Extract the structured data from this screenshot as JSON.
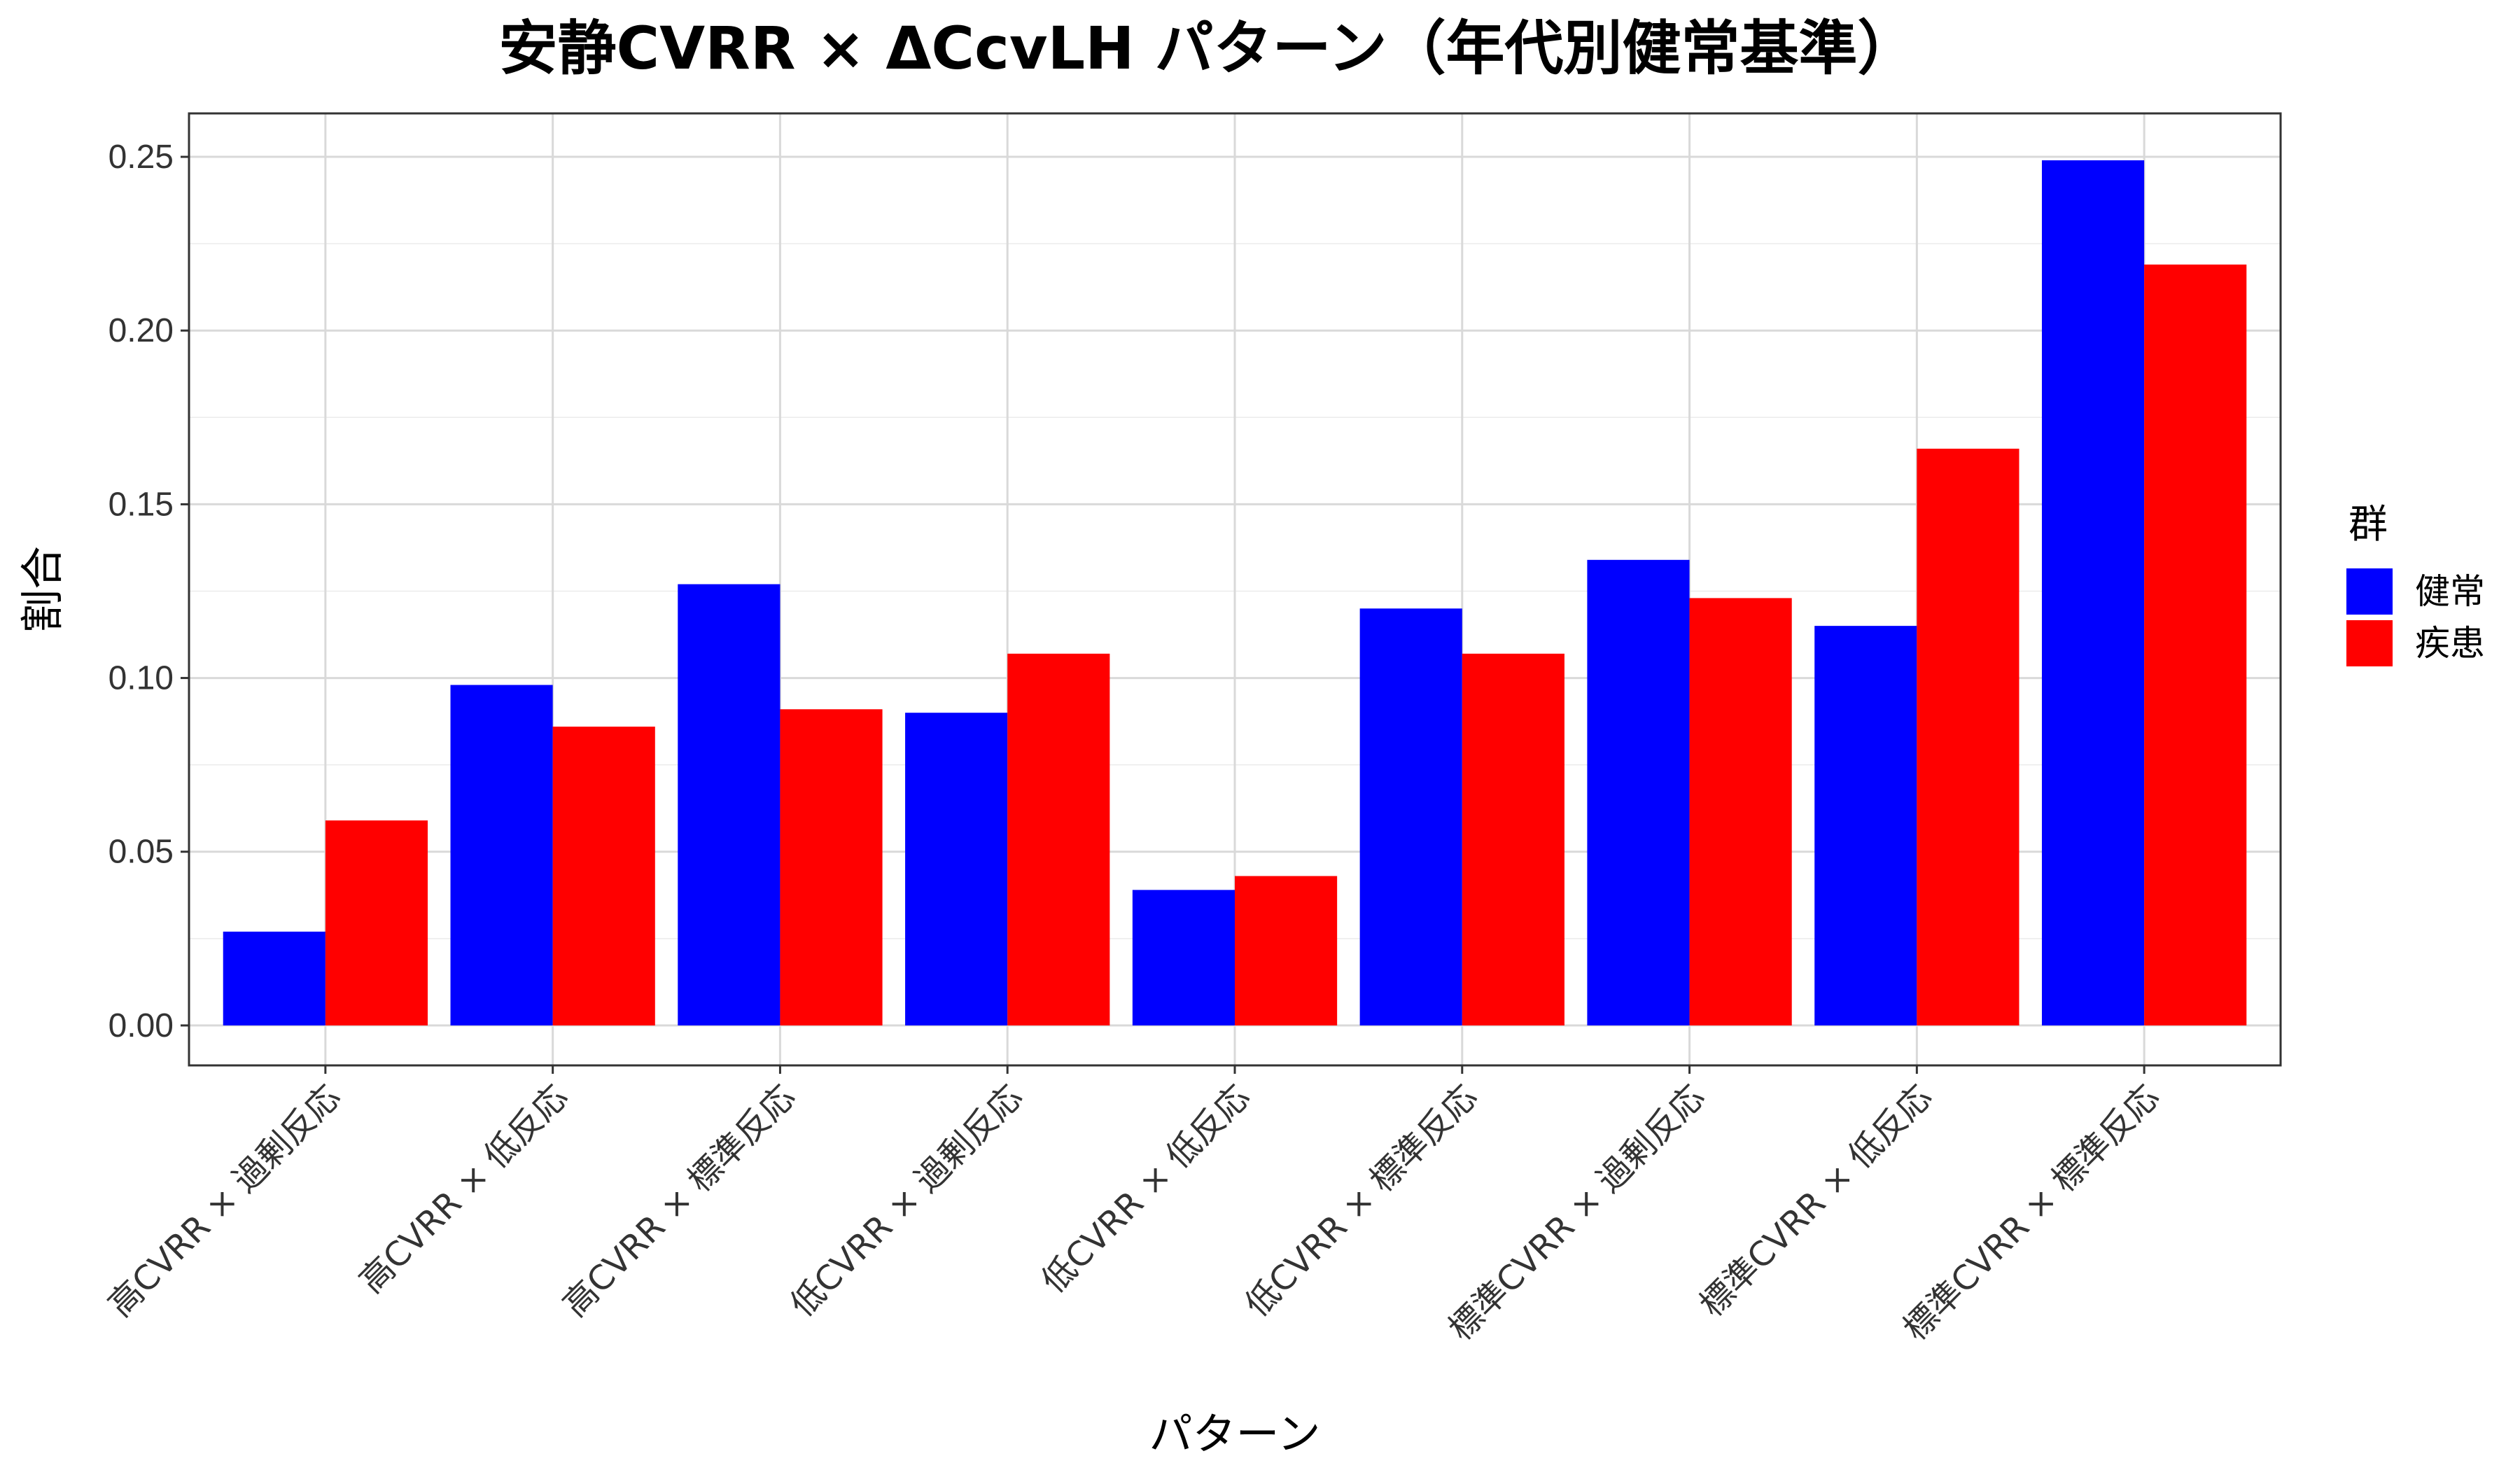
{
  "chart_data": {
    "type": "bar",
    "title": "安静CVRR × ΔCcvLH パターン（年代別健常基準）",
    "xlabel": "パターン",
    "ylabel": "割合",
    "ylim": [
      -0.0115,
      0.2625
    ],
    "yticks": [
      "0.00",
      "0.05",
      "0.10",
      "0.15",
      "0.20",
      "0.25"
    ],
    "ytick_values": [
      0,
      0.05,
      0.1,
      0.15,
      0.2,
      0.25
    ],
    "grid": true,
    "legend_title": "群",
    "legend_position": "right",
    "categories": [
      "高CVRR × 過剰反応",
      "高CVRR × 低反応",
      "高CVRR × 標準反応",
      "低CVRR × 過剰反応",
      "低CVRR × 低反応",
      "低CVRR × 標準反応",
      "標準CVRR × 過剰反応",
      "標準CVRR × 低反応",
      "標準CVRR × 標準反応"
    ],
    "series": [
      {
        "name": "健常",
        "color": "#0000FF",
        "values": [
          0.027,
          0.098,
          0.127,
          0.09,
          0.039,
          0.12,
          0.134,
          0.115,
          0.249
        ]
      },
      {
        "name": "疾患",
        "color": "#FF0000",
        "values": [
          0.059,
          0.086,
          0.091,
          0.107,
          0.043,
          0.107,
          0.123,
          0.166,
          0.219
        ]
      }
    ]
  }
}
